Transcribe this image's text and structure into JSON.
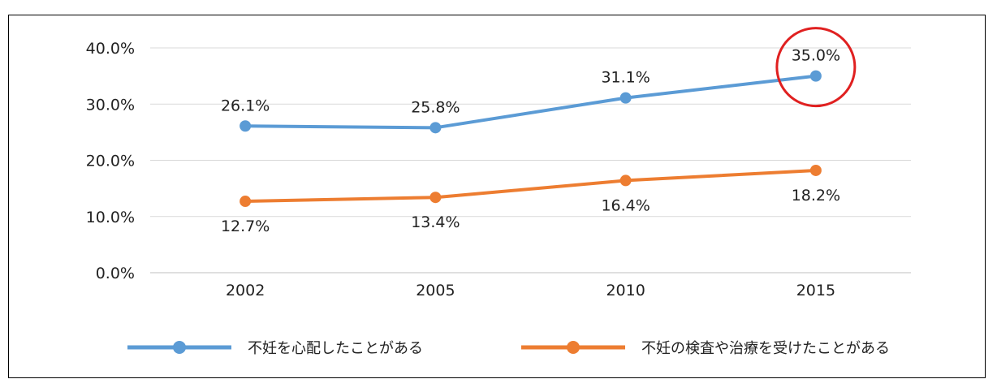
{
  "chart_data": {
    "type": "line",
    "categories": [
      "2002",
      "2005",
      "2010",
      "2015"
    ],
    "y_ticks": [
      "0.0%",
      "10.0%",
      "20.0%",
      "30.0%",
      "40.0%"
    ],
    "ylim": [
      0,
      40
    ],
    "grid": true,
    "legend_position": "bottom",
    "series": [
      {
        "name": "不妊を心配したことがある",
        "values": [
          26.1,
          25.8,
          31.1,
          35.0
        ],
        "labels": [
          "26.1%",
          "25.8%",
          "31.1%",
          "35.0%"
        ],
        "color": "#5b9bd5",
        "label_position": "above"
      },
      {
        "name": "不妊の検査や治療を受けたことがある",
        "values": [
          12.7,
          13.4,
          16.4,
          18.2
        ],
        "labels": [
          "12.7%",
          "13.4%",
          "16.4%",
          "18.2%"
        ],
        "color": "#ed7d31",
        "label_position": "below"
      }
    ],
    "annotation": {
      "type": "circle",
      "series_index": 0,
      "point_index": 3,
      "color": "#e02020"
    }
  }
}
